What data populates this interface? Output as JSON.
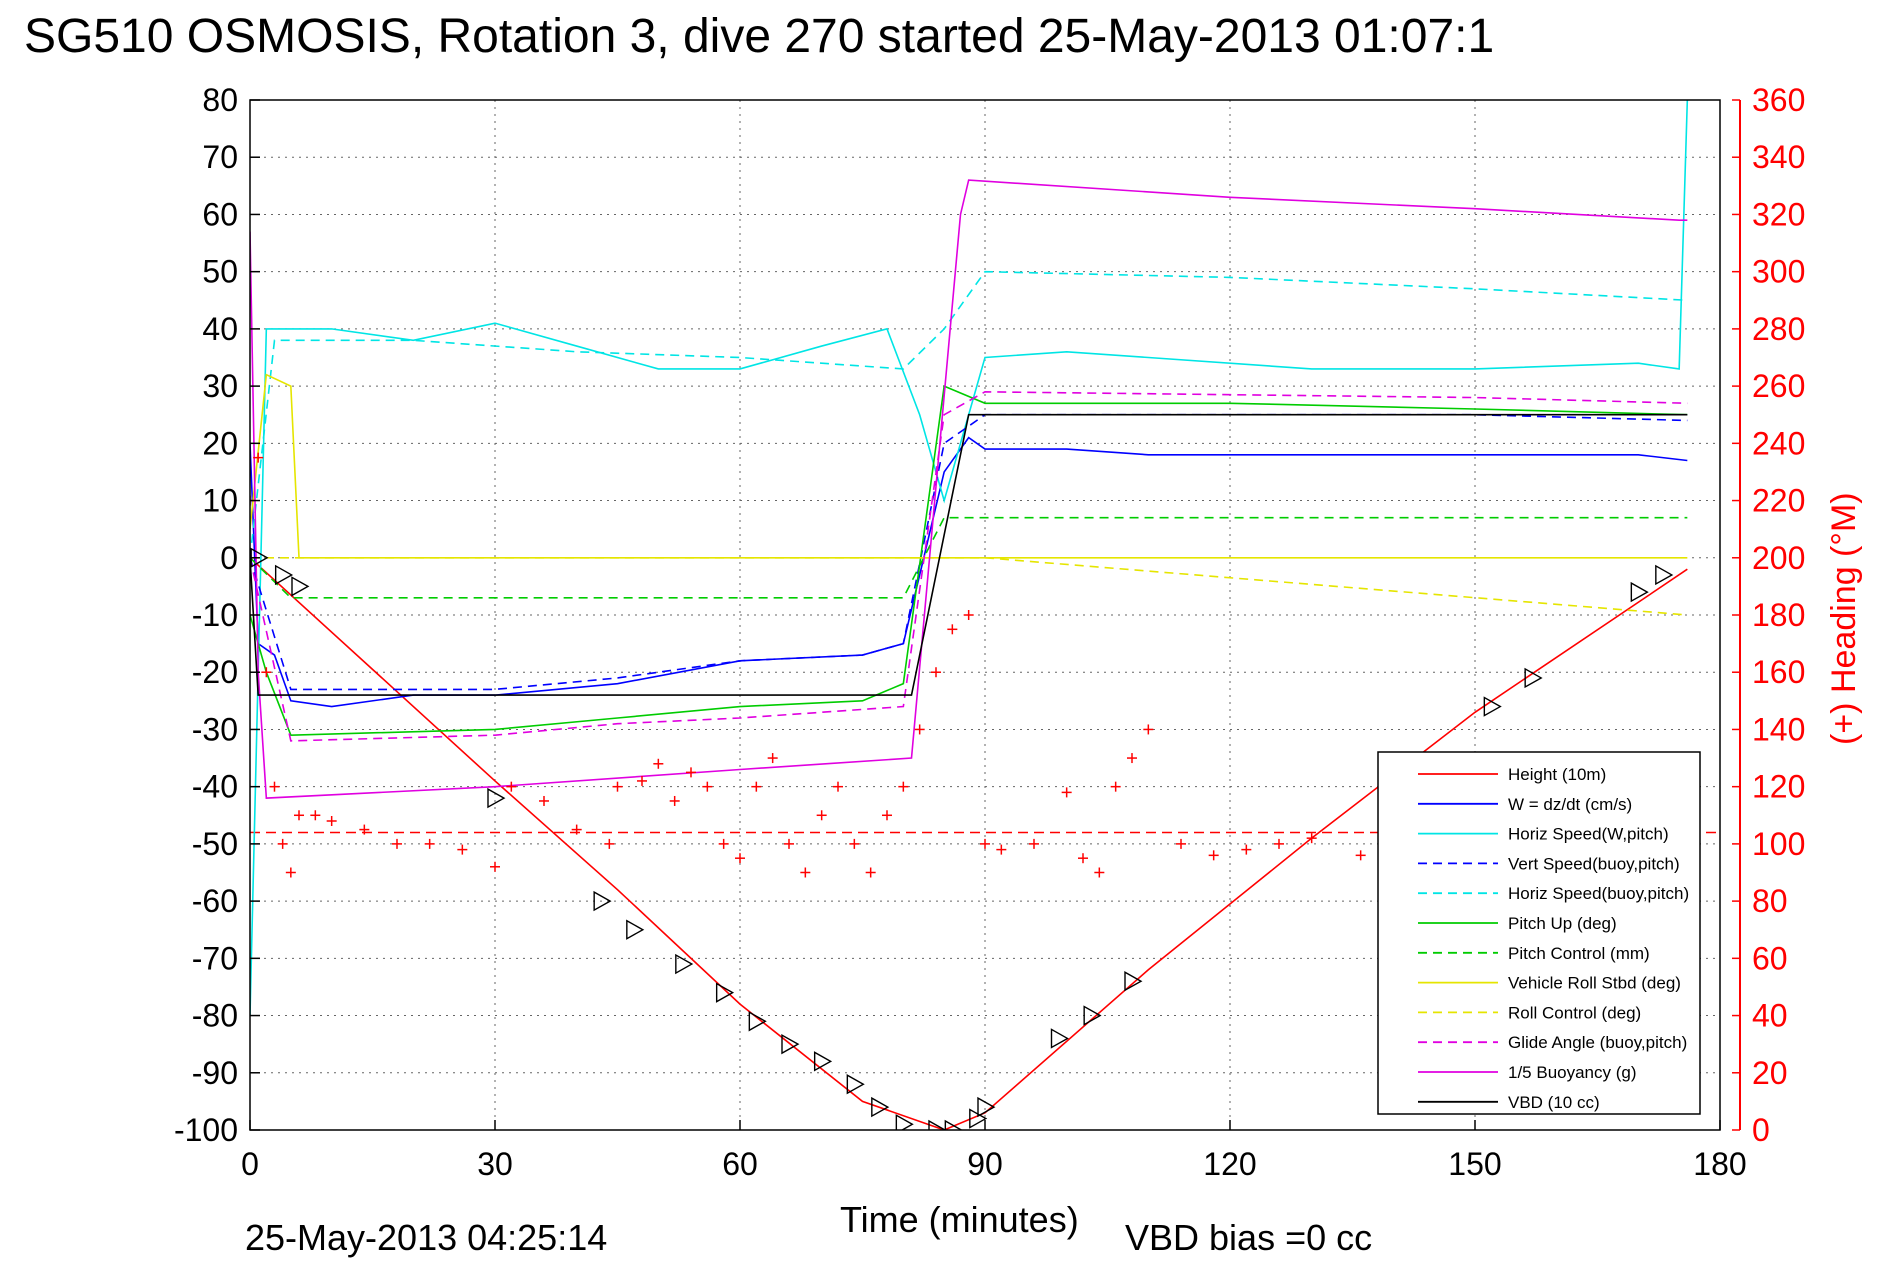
{
  "title": "SG510 OSMOSIS, Rotation 3, dive 270 started 25-May-2013 01:07:1",
  "footer": {
    "timestamp": "25-May-2013 04:25:14",
    "xlabel": "Time (minutes)",
    "vbd_bias": "VBD bias =0 cc"
  },
  "colors": {
    "right_axis": "#ff0000",
    "grid": "#555555"
  },
  "chart_data": {
    "type": "line",
    "xlim": [
      0,
      180
    ],
    "ylim": [
      -100,
      80
    ],
    "y2lim": [
      0,
      360
    ],
    "grid": true,
    "legend_placement": "bottom-right",
    "xlabel": "Time (minutes)",
    "ylabel": "",
    "y2label": "(+) Heading (°M)",
    "x_ticks": [
      "0",
      "30",
      "60",
      "90",
      "120",
      "150",
      "180"
    ],
    "y_ticks": [
      "80",
      "70",
      "60",
      "50",
      "40",
      "30",
      "20",
      "10",
      "0",
      "-10",
      "-20",
      "-30",
      "-40",
      "-50",
      "-60",
      "-70",
      "-80",
      "-90",
      "-100"
    ],
    "y2_ticks": [
      "360",
      "340",
      "320",
      "300",
      "280",
      "260",
      "240",
      "220",
      "200",
      "180",
      "160",
      "140",
      "120",
      "100",
      "80",
      "60",
      "40",
      "20",
      "0"
    ],
    "series": [
      {
        "name": "Height (10m)",
        "color": "#ff0000",
        "style": "solid",
        "x": [
          0,
          30,
          45,
          60,
          75,
          85,
          90,
          110,
          130,
          150,
          176
        ],
        "y": [
          0,
          -39,
          -58,
          -78,
          -95,
          -100,
          -97,
          -72,
          -49,
          -27,
          -2
        ]
      },
      {
        "name": "W = dz/dt (cm/s)",
        "color": "#0000ff",
        "style": "solid",
        "x": [
          0,
          1,
          3,
          5,
          10,
          20,
          30,
          45,
          60,
          75,
          80,
          85,
          88,
          90,
          100,
          110,
          130,
          150,
          170,
          176
        ],
        "y": [
          20,
          -15,
          -17,
          -25,
          -26,
          -24,
          -24,
          -22,
          -18,
          -17,
          -15,
          15,
          21,
          19,
          19,
          18,
          18,
          18,
          18,
          17
        ]
      },
      {
        "name": "Horiz Speed(W,pitch)",
        "color": "#00e5e5",
        "style": "solid",
        "x": [
          0,
          2,
          10,
          20,
          30,
          40,
          50,
          60,
          70,
          78,
          82,
          85,
          90,
          100,
          110,
          130,
          150,
          170,
          175,
          176
        ],
        "y": [
          -80,
          40,
          40,
          38,
          41,
          37,
          33,
          33,
          37,
          40,
          25,
          10,
          35,
          36,
          35,
          33,
          33,
          34,
          33,
          80
        ]
      },
      {
        "name": "Vert Speed(buoy,pitch)",
        "color": "#0000ff",
        "style": "dashed",
        "x": [
          0,
          5,
          30,
          45,
          60,
          75,
          80,
          85,
          90,
          120,
          150,
          176
        ],
        "y": [
          0,
          -23,
          -23,
          -21,
          -18,
          -17,
          -15,
          20,
          25,
          25,
          25,
          24
        ]
      },
      {
        "name": "Horiz Speed(buoy,pitch)",
        "color": "#00e5e5",
        "style": "dashed",
        "x": [
          0,
          3,
          20,
          40,
          60,
          80,
          85,
          90,
          120,
          150,
          176
        ],
        "y": [
          0,
          38,
          38,
          36,
          35,
          33,
          40,
          50,
          49,
          47,
          45
        ]
      },
      {
        "name": "Pitch Up (deg)",
        "color": "#00cc00",
        "style": "solid",
        "x": [
          0,
          2,
          5,
          30,
          45,
          60,
          75,
          80,
          85,
          90,
          120,
          150,
          176
        ],
        "y": [
          -10,
          -20,
          -31,
          -30,
          -28,
          -26,
          -25,
          -22,
          30,
          27,
          27,
          26,
          25
        ]
      },
      {
        "name": "Pitch Control (mm)",
        "color": "#00cc00",
        "style": "dashed",
        "x": [
          0,
          5,
          80,
          85,
          90,
          176
        ],
        "y": [
          0,
          -7,
          -7,
          7,
          7,
          7
        ]
      },
      {
        "name": "Vehicle Roll Stbd (deg)",
        "color": "#e5e500",
        "style": "solid",
        "x": [
          0,
          2,
          5,
          6,
          30,
          90,
          176
        ],
        "y": [
          5,
          32,
          30,
          0,
          0,
          0,
          0
        ]
      },
      {
        "name": "Roll Control (deg)",
        "color": "#e5e500",
        "style": "dashed",
        "x": [
          0,
          5,
          30,
          90,
          176
        ],
        "y": [
          0,
          0,
          0,
          0,
          -10
        ]
      },
      {
        "name": "Glide Angle (buoy,pitch)",
        "color": "#e000e0",
        "style": "dashed",
        "x": [
          0,
          5,
          30,
          45,
          60,
          80,
          85,
          90,
          150,
          176
        ],
        "y": [
          0,
          -32,
          -31,
          -29,
          -28,
          -26,
          25,
          29,
          28,
          27
        ]
      },
      {
        "name": "1/5 Buoyancy (g)",
        "color": "#e000e0",
        "style": "solid",
        "x": [
          0,
          1,
          2,
          30,
          60,
          81,
          87,
          88,
          120,
          150,
          175,
          176
        ],
        "y": [
          57,
          -20,
          -42,
          -40,
          -37,
          -35,
          60,
          66,
          63,
          61,
          59,
          59
        ]
      },
      {
        "name": "VBD (10 cc)",
        "color": "#000000",
        "style": "solid",
        "x": [
          0,
          1,
          81,
          88,
          176
        ],
        "y": [
          0,
          -24,
          -24,
          25,
          25
        ]
      }
    ],
    "heading": {
      "color": "#ff0000",
      "marker": "+",
      "x": [
        0,
        1,
        2,
        3,
        4,
        5,
        6,
        8,
        10,
        14,
        18,
        22,
        26,
        30,
        32,
        36,
        40,
        44,
        45,
        48,
        50,
        52,
        54,
        56,
        58,
        60,
        62,
        64,
        66,
        68,
        70,
        72,
        74,
        76,
        78,
        80,
        82,
        84,
        86,
        88,
        90,
        92,
        96,
        100,
        102,
        104,
        106,
        108,
        110,
        114,
        118,
        122,
        126,
        130,
        136,
        140
      ],
      "y": [
        220,
        235,
        160,
        120,
        100,
        90,
        110,
        110,
        108,
        105,
        100,
        100,
        98,
        92,
        120,
        115,
        105,
        100,
        120,
        122,
        128,
        115,
        125,
        120,
        100,
        95,
        120,
        130,
        100,
        90,
        110,
        120,
        100,
        90,
        110,
        120,
        140,
        160,
        175,
        180,
        100,
        98,
        100,
        118,
        95,
        90,
        120,
        130,
        140,
        100,
        96,
        98,
        100,
        102,
        96,
        100
      ]
    },
    "heading_mean": 104,
    "markers": {
      "color": "#000000",
      "shape": "triangle",
      "x": [
        1,
        4,
        6,
        30,
        43,
        47,
        53,
        58,
        62,
        66,
        70,
        74,
        77,
        80,
        84,
        86,
        89,
        90,
        99,
        103,
        108,
        152,
        157,
        170,
        173
      ],
      "y": [
        0,
        -3,
        -5,
        -42,
        -60,
        -65,
        -71,
        -76,
        -81,
        -85,
        -88,
        -92,
        -96,
        -99,
        -100,
        -100,
        -98,
        -96,
        -84,
        -80,
        -74,
        -26,
        -21,
        -6,
        -3
      ]
    }
  },
  "legend": [
    {
      "label": "Height (10m)",
      "color": "#ff0000",
      "style": "solid"
    },
    {
      "label": "W = dz/dt (cm/s)",
      "color": "#0000ff",
      "style": "solid"
    },
    {
      "label": "Horiz Speed(W,pitch)",
      "color": "#00e5e5",
      "style": "solid"
    },
    {
      "label": "Vert Speed(buoy,pitch)",
      "color": "#0000ff",
      "style": "dashed"
    },
    {
      "label": "Horiz Speed(buoy,pitch)",
      "color": "#00e5e5",
      "style": "dashed"
    },
    {
      "label": "Pitch Up (deg)",
      "color": "#00cc00",
      "style": "solid"
    },
    {
      "label": "Pitch Control (mm)",
      "color": "#00cc00",
      "style": "dashed"
    },
    {
      "label": "Vehicle Roll Stbd (deg)",
      "color": "#e5e500",
      "style": "solid"
    },
    {
      "label": "Roll Control (deg)",
      "color": "#e5e500",
      "style": "dashed"
    },
    {
      "label": "Glide Angle (buoy,pitch)",
      "color": "#e000e0",
      "style": "dashed"
    },
    {
      "label": "1/5 Buoyancy (g)",
      "color": "#e000e0",
      "style": "solid"
    },
    {
      "label": "VBD (10 cc)",
      "color": "#000000",
      "style": "solid"
    }
  ]
}
